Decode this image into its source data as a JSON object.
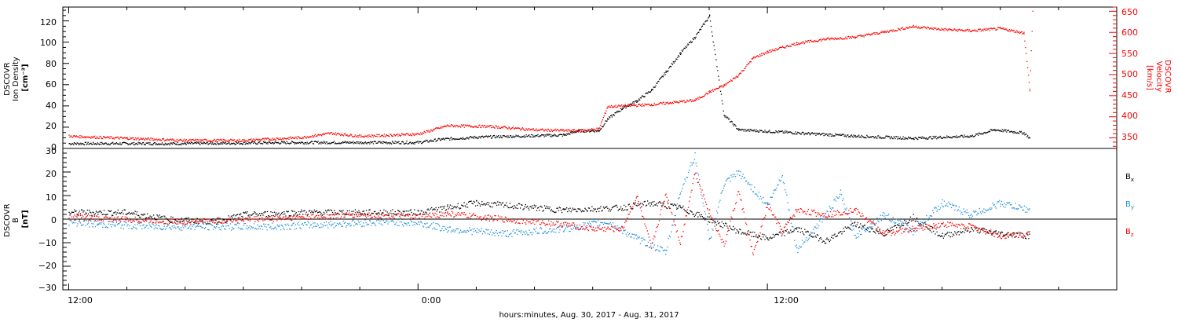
{
  "figure": {
    "xlabel": "hours:minutes, Aug. 30, 2017 - Aug. 31, 2017",
    "time_ticks": [
      "12:00",
      "0:00",
      "12:00"
    ]
  },
  "chart_data": [
    {
      "type": "scatter",
      "panel": "ion-density-velocity",
      "ylabel_left": [
        "DSCOVR",
        "Ion Density",
        "[cm⁻³]"
      ],
      "ylabel_right": [
        "DSCOVR",
        "Velocity",
        "[km/s]"
      ],
      "ylim_left": [
        0,
        133
      ],
      "yticks_left": [
        "0",
        "20",
        "40",
        "60",
        "80",
        "100",
        "120"
      ],
      "ylim_right": [
        325,
        660
      ],
      "yticks_right": [
        "350",
        "400",
        "450",
        "500",
        "550",
        "600",
        "650"
      ],
      "x_unit": "hours from 2017-08-30 12:00",
      "xlim": [
        -0.2,
        36
      ],
      "series": [
        {
          "name": "Ion Density",
          "axis": "left",
          "color": "#000000",
          "points": [
            [
              0,
              5
            ],
            [
              4,
              5
            ],
            [
              8,
              6
            ],
            [
              12,
              6
            ],
            [
              12.8,
              9
            ],
            [
              14,
              11
            ],
            [
              15.5,
              12
            ],
            [
              17,
              13
            ],
            [
              17.5,
              17
            ],
            [
              18.2,
              17
            ],
            [
              18.5,
              28
            ],
            [
              19,
              38
            ],
            [
              19.5,
              45
            ],
            [
              20,
              55
            ],
            [
              20.5,
              72
            ],
            [
              21,
              90
            ],
            [
              21.5,
              105
            ],
            [
              22,
              125
            ],
            [
              22.5,
              32
            ],
            [
              23,
              18
            ],
            [
              25,
              15
            ],
            [
              27,
              12
            ],
            [
              29,
              10
            ],
            [
              31,
              12
            ],
            [
              31.8,
              18
            ],
            [
              32.8,
              15
            ],
            [
              33,
              10
            ]
          ]
        },
        {
          "name": "Velocity",
          "axis": "right",
          "color": "#ff0000",
          "points": [
            [
              0,
              355
            ],
            [
              2,
              350
            ],
            [
              4,
              345
            ],
            [
              6,
              345
            ],
            [
              8,
              352
            ],
            [
              9,
              362
            ],
            [
              10,
              355
            ],
            [
              12,
              360
            ],
            [
              13,
              380
            ],
            [
              14.5,
              378
            ],
            [
              16,
              370
            ],
            [
              17.5,
              368
            ],
            [
              18.2,
              372
            ],
            [
              18.5,
              425
            ],
            [
              20,
              430
            ],
            [
              21.5,
              440
            ],
            [
              22,
              460
            ],
            [
              22.5,
              475
            ],
            [
              23,
              500
            ],
            [
              23.5,
              540
            ],
            [
              24,
              555
            ],
            [
              25,
              575
            ],
            [
              26,
              585
            ],
            [
              27,
              590
            ],
            [
              28,
              602
            ],
            [
              29,
              615
            ],
            [
              30,
              608
            ],
            [
              31,
              605
            ],
            [
              32,
              610
            ],
            [
              32.8,
              600
            ],
            [
              33,
              465
            ],
            [
              33.1,
              650
            ]
          ]
        }
      ]
    },
    {
      "type": "scatter",
      "panel": "magnetic-field",
      "ylabel": [
        "DSCOVR",
        "B",
        "[nT]"
      ],
      "ylim": [
        -30,
        30
      ],
      "yticks": [
        "−30",
        "−20",
        "−10",
        "0",
        "10",
        "20",
        "30"
      ],
      "x_unit": "hours from 2017-08-30 12:00",
      "xlim": [
        -0.2,
        36
      ],
      "zero_line": true,
      "series": [
        {
          "name": "Bx",
          "label_main": "B",
          "label_sub": "x",
          "color": "#000000",
          "points": [
            [
              0,
              3
            ],
            [
              2,
              3
            ],
            [
              3.5,
              0
            ],
            [
              5,
              -1
            ],
            [
              6,
              2
            ],
            [
              8,
              3
            ],
            [
              10,
              3
            ],
            [
              12,
              3
            ],
            [
              13,
              5
            ],
            [
              14,
              7
            ],
            [
              16,
              5
            ],
            [
              17,
              4
            ],
            [
              19,
              5
            ],
            [
              20,
              7
            ],
            [
              21,
              5
            ],
            [
              22,
              0
            ],
            [
              23,
              -5
            ],
            [
              24,
              -8
            ],
            [
              25,
              -4
            ],
            [
              26,
              -9
            ],
            [
              27,
              -2
            ],
            [
              28,
              -6
            ],
            [
              29,
              1
            ],
            [
              30,
              -7
            ],
            [
              31,
              -4
            ],
            [
              32,
              -6
            ],
            [
              33,
              -7
            ]
          ]
        },
        {
          "name": "By",
          "label_main": "B",
          "label_sub": "y",
          "color": "#1e90dc",
          "points": [
            [
              0,
              -1
            ],
            [
              1,
              -2
            ],
            [
              3,
              -3
            ],
            [
              5,
              -3
            ],
            [
              7,
              -3
            ],
            [
              9,
              -2
            ],
            [
              11,
              -1
            ],
            [
              12,
              -1.5
            ],
            [
              13,
              -4
            ],
            [
              15,
              -6
            ],
            [
              17,
              -4
            ],
            [
              18.5,
              -1
            ],
            [
              19.5,
              -8
            ],
            [
              20.5,
              -14
            ],
            [
              21,
              12
            ],
            [
              21.5,
              27
            ],
            [
              22,
              -9
            ],
            [
              22.5,
              15
            ],
            [
              23,
              20
            ],
            [
              24,
              6
            ],
            [
              24.5,
              19
            ],
            [
              25,
              -13
            ],
            [
              26,
              2
            ],
            [
              26.5,
              11
            ],
            [
              27,
              -7
            ],
            [
              28,
              2
            ],
            [
              29,
              -5
            ],
            [
              30,
              7
            ],
            [
              31,
              2
            ],
            [
              32,
              7
            ],
            [
              33,
              4
            ]
          ]
        },
        {
          "name": "Bz",
          "label_main": "B",
          "label_sub": "z",
          "color": "#ff0000",
          "points": [
            [
              0,
              1
            ],
            [
              2,
              0
            ],
            [
              4,
              -1
            ],
            [
              6,
              0
            ],
            [
              8,
              1
            ],
            [
              10,
              2
            ],
            [
              12,
              1
            ],
            [
              13,
              2.5
            ],
            [
              15,
              0
            ],
            [
              17,
              -2
            ],
            [
              18,
              -4
            ],
            [
              19,
              -4
            ],
            [
              19.5,
              10
            ],
            [
              20,
              -12
            ],
            [
              20.5,
              11
            ],
            [
              21,
              -10
            ],
            [
              21.5,
              20
            ],
            [
              22,
              3
            ],
            [
              22.5,
              -11
            ],
            [
              23,
              12
            ],
            [
              23.5,
              -15
            ],
            [
              24,
              6
            ],
            [
              24.5,
              -5
            ],
            [
              25,
              4
            ],
            [
              26,
              2
            ],
            [
              27,
              4
            ],
            [
              28,
              -6
            ],
            [
              29,
              -4
            ],
            [
              30,
              -2
            ],
            [
              31,
              -3
            ],
            [
              32,
              -7
            ],
            [
              33,
              -6
            ]
          ]
        }
      ]
    }
  ]
}
